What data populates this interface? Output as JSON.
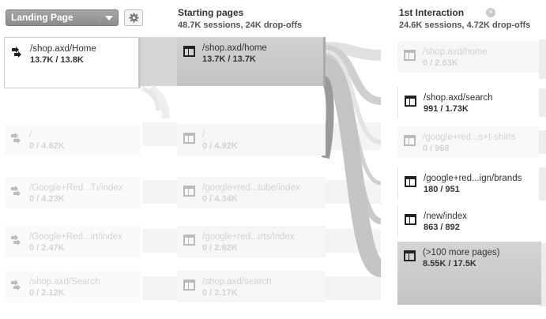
{
  "header": {
    "dropdown_label": "Landing Page",
    "starting_title": "Starting pages",
    "starting_sub": "48.7K sessions, 24K drop-offs",
    "interaction_title": "1st Interaction",
    "interaction_sub": "24.6K sessions, 4.72K drop-offs"
  },
  "landing": [
    {
      "label": "/shop.axd/Home",
      "value": "13.7K / 13.8K",
      "active": true
    },
    {
      "label": "/",
      "value": "0 / 4.62K",
      "active": false
    },
    {
      "label": "/Google+Red...Tı/index",
      "value": "0 / 4.23K",
      "active": false
    },
    {
      "label": "/Google+Red...irt/index",
      "value": "0 / 2.47K",
      "active": false
    },
    {
      "label": "/shop.axd/Search",
      "value": "0 / 2.12K",
      "active": false
    }
  ],
  "starting": [
    {
      "label": "/shop.axd/home",
      "value": "13.7K / 13.7K",
      "active": true
    },
    {
      "label": "/",
      "value": "0 / 4.92K",
      "active": false
    },
    {
      "label": "/google+red...tube/index",
      "value": "0 / 4.34K",
      "active": false
    },
    {
      "label": "/google+red...irts/index",
      "value": "0 / 2.62K",
      "active": false
    },
    {
      "label": "/shop.axd/search",
      "value": "0 / 2.17K",
      "active": false
    }
  ],
  "interaction": [
    {
      "label": "/shop.axd/home",
      "value": "0 / 2.63K",
      "active": false
    },
    {
      "label": "/shop.axd/search",
      "value": "991 / 1.73K",
      "active": true
    },
    {
      "label": "/google+red...s+t-shirts",
      "value": "0 / 968",
      "active": false
    },
    {
      "label": "/google+red...ign/brands",
      "value": "180 / 951",
      "active": true
    },
    {
      "label": "/new/index",
      "value": "863 / 892",
      "active": true
    },
    {
      "label": "(>100 more pages)",
      "value": "8.55K / 17.5K",
      "active": true
    }
  ],
  "icons": {
    "dropdown": "chevron-down-icon",
    "gear": "gear-icon",
    "close": "close-icon",
    "landing_node": "arrow-right-icon",
    "page_node": "page-layout-icon"
  },
  "colors": {
    "node_active": "#c8c8c8",
    "node_faded": "#f2f2f2",
    "flow": "#d9d9d9",
    "dropdown_bg": "#999999"
  }
}
